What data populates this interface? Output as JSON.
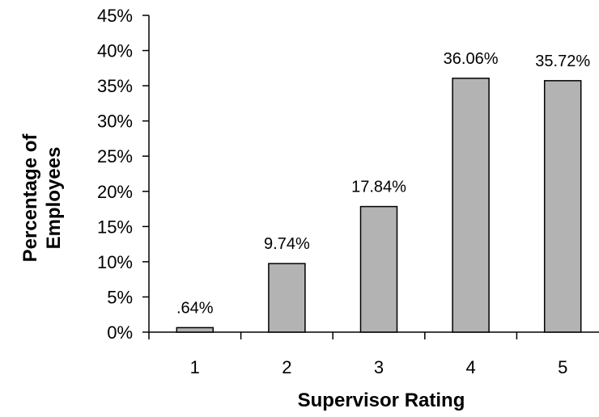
{
  "chart_data": {
    "type": "bar",
    "title": "",
    "xlabel": "Supervisor Rating",
    "ylabel_lines": [
      "Percentage of",
      "Employees"
    ],
    "categories": [
      "1",
      "2",
      "3",
      "4",
      "5"
    ],
    "values": [
      0.64,
      9.74,
      17.84,
      36.06,
      35.72
    ],
    "data_labels": [
      ".64%",
      "9.74%",
      "17.84%",
      "36.06%",
      "35.72%"
    ],
    "ylim": [
      0,
      45
    ],
    "y_ticks": [
      0,
      5,
      10,
      15,
      20,
      25,
      30,
      35,
      40,
      45
    ],
    "y_tick_labels": [
      "0%",
      "5%",
      "10%",
      "15%",
      "20%",
      "25%",
      "30%",
      "35%",
      "40%",
      "45%"
    ],
    "grid": false,
    "legend": "none",
    "colors": {
      "bar_fill": "#b3b3b3",
      "bar_stroke": "#000000",
      "axis": "#000000"
    }
  }
}
